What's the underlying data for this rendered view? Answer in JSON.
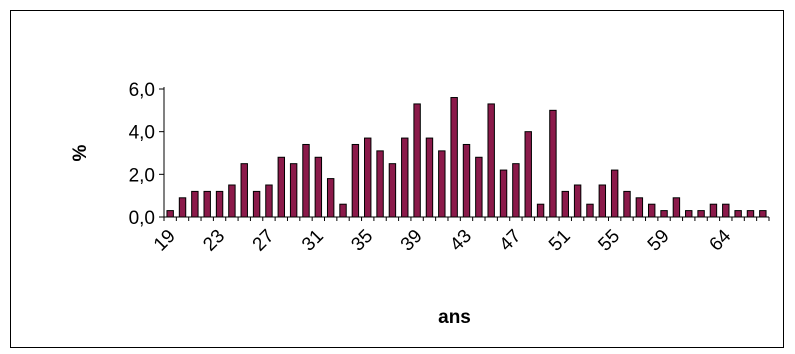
{
  "chart_data": {
    "type": "bar",
    "title": "",
    "xlabel": "ans",
    "ylabel": "%",
    "ylim": [
      0,
      6
    ],
    "y_ticks": [
      "0,0",
      "2,0",
      "4,0",
      "6,0"
    ],
    "y_tick_values": [
      0,
      2,
      4,
      6
    ],
    "x_tick_labels": [
      "19",
      "23",
      "27",
      "31",
      "35",
      "39",
      "43",
      "47",
      "51",
      "55",
      "59",
      "64"
    ],
    "x_tick_categories": [
      "19",
      "23",
      "27",
      "31",
      "35",
      "39",
      "43",
      "47",
      "51",
      "55",
      "59",
      "64"
    ],
    "grid": false,
    "legend": "none",
    "bar_fill": "#8b1a4a",
    "bar_stroke": "#000000",
    "categories": [
      "19",
      "20",
      "21",
      "22",
      "23",
      "24",
      "25",
      "26",
      "27",
      "28",
      "29",
      "30",
      "31",
      "32",
      "33",
      "34",
      "35",
      "36",
      "37",
      "38",
      "39",
      "40",
      "41",
      "42",
      "43",
      "44",
      "45",
      "46",
      "47",
      "48",
      "49",
      "50",
      "51",
      "52",
      "53",
      "54",
      "55",
      "56",
      "57",
      "58",
      "59",
      "60",
      "61",
      "62",
      "63",
      "64",
      "65",
      "66",
      "67"
    ],
    "values": [
      0.3,
      0.9,
      1.2,
      1.2,
      1.2,
      1.5,
      2.5,
      1.2,
      1.5,
      2.8,
      2.5,
      3.4,
      2.8,
      1.8,
      0.6,
      3.4,
      3.7,
      3.1,
      2.5,
      3.7,
      5.3,
      3.7,
      3.1,
      5.6,
      3.4,
      2.8,
      5.3,
      2.2,
      2.5,
      4.0,
      0.6,
      5.0,
      1.2,
      1.5,
      0.6,
      1.5,
      2.2,
      1.2,
      0.9,
      0.6,
      0.3,
      0.9,
      0.3,
      0.3,
      0.6,
      0.6,
      0.3,
      0.3,
      0.3
    ]
  }
}
